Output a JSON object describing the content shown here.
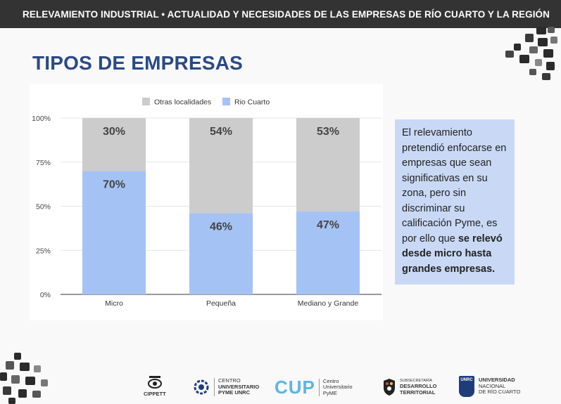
{
  "header": {
    "title": "RELEVAMIENTO INDUSTRIAL • ACTUALIDAD Y NECESIDADES DE LAS EMPRESAS DE RÍO CUARTO Y LA REGIÓN"
  },
  "page_title": "TIPOS DE EMPRESAS",
  "info": {
    "text_normal": "El relevamiento pretendió enfocarse en empresas que sean significativas en su zona, pero sin discriminar su calificación Pyme, es por ello que ",
    "text_bold": "se relevó desde micro hasta grandes empresas."
  },
  "chart_data": {
    "type": "bar",
    "stacked": true,
    "percent": true,
    "categories": [
      "Micro",
      "Pequeña",
      "Mediano y Grande"
    ],
    "series": [
      {
        "name": "Rio Cuarto",
        "values": [
          70,
          46,
          47
        ],
        "labels": [
          "70%",
          "46%",
          "47%"
        ],
        "color": "#a4c2f4"
      },
      {
        "name": "Otras localidades",
        "values": [
          30,
          54,
          53
        ],
        "labels": [
          "30%",
          "54%",
          "53%"
        ],
        "color": "#cccccc"
      }
    ],
    "legend": [
      "Otras localidades",
      "Rio Cuarto"
    ],
    "legend_position": "top",
    "y_ticks": [
      "0%",
      "25%",
      "50%",
      "75%",
      "100%"
    ],
    "ylim": [
      0,
      100
    ]
  },
  "footer": {
    "cippett": "CIPPETT",
    "centro_line1": "CENTRO",
    "centro_line2": "UNIVERSITARIO",
    "centro_line3": "PYME UNRC",
    "cup": "CUP",
    "cup_line1": "Centro",
    "cup_line2": "Universitario",
    "cup_line3": "PyME",
    "sub_line1": "SUBSECRETARÍA",
    "sub_line2": "DESARROLLO",
    "sub_line3": "TERRITORIAL",
    "unrc_badge": "UNRC",
    "unrc_line1": "UNIVERSIDAD",
    "unrc_line2": "NACIONAL",
    "unrc_line3": "DE RÍO CUARTO"
  }
}
